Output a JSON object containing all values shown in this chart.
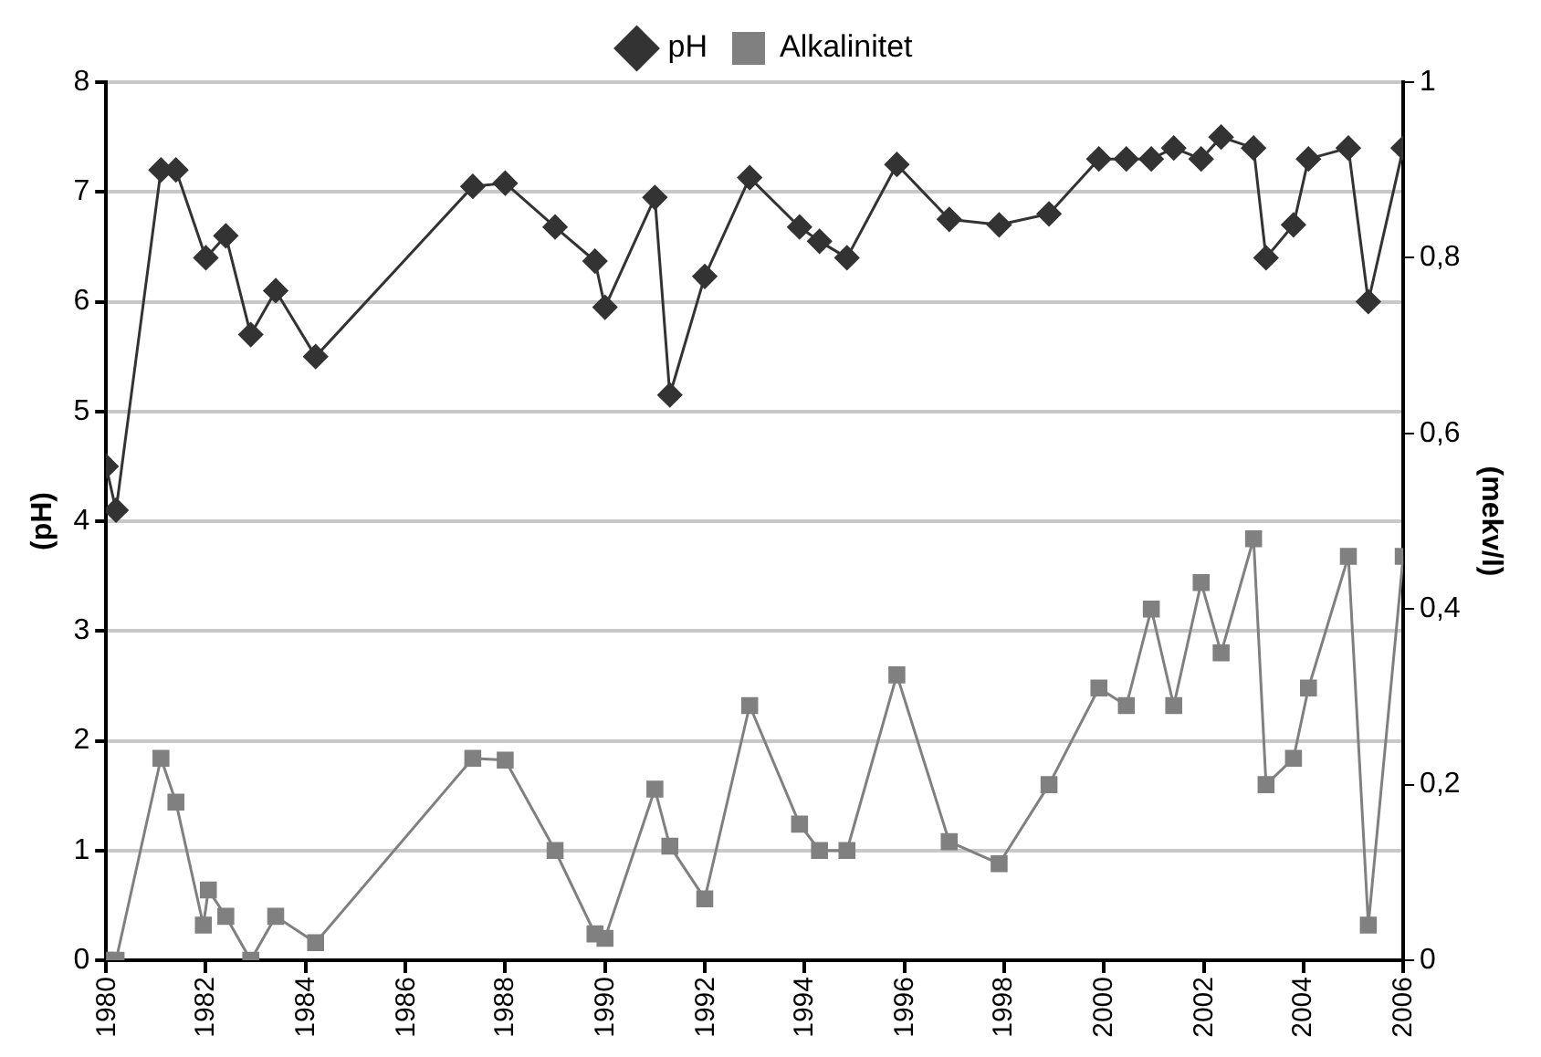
{
  "chart_data": {
    "type": "line",
    "xlabel": null,
    "ylabel": "(pH)",
    "y2label": "(mekv/l)",
    "xlim": [
      1980,
      2006
    ],
    "xticks": [
      1980,
      1982,
      1984,
      1986,
      1988,
      1990,
      1992,
      1994,
      1996,
      1998,
      2000,
      2002,
      2004,
      2006
    ],
    "ylim": [
      0,
      8
    ],
    "yticks": [
      0,
      1,
      2,
      3,
      4,
      5,
      6,
      7,
      8
    ],
    "y2lim": [
      0,
      1
    ],
    "y2ticks": [
      0,
      {
        "value": 0.2,
        "label": "0,2"
      },
      {
        "value": 0.4,
        "label": "0,4"
      },
      {
        "value": 0.6,
        "label": "0,6"
      },
      {
        "value": 0.8,
        "label": "0,8"
      },
      1
    ],
    "grid": "y",
    "legend": "top",
    "line_style": "solid",
    "series": [
      {
        "name": "pH",
        "color": "#333333",
        "marker": "diamond",
        "x": [
          1980.0,
          1980.2,
          1981.1,
          1981.4,
          1982.0,
          1982.4,
          1982.9,
          1983.4,
          1984.2,
          1987.35,
          1988.0,
          1989.0,
          1989.8,
          1990.0,
          1991.0,
          1991.3,
          1992.0,
          1992.9,
          1993.9,
          1994.3,
          1994.85,
          1995.85,
          1996.9,
          1997.9,
          1998.9,
          1999.9,
          2000.45,
          2000.95,
          2001.4,
          2001.95,
          2002.35,
          2003.0,
          2003.25,
          2003.8,
          2004.1,
          2004.9,
          2005.3,
          2006.0
        ],
        "values": [
          4.5,
          4.1,
          7.2,
          7.2,
          6.4,
          6.6,
          5.7,
          6.1,
          5.5,
          7.05,
          7.08,
          6.68,
          6.37,
          5.95,
          6.95,
          5.15,
          6.23,
          7.13,
          6.68,
          6.55,
          6.4,
          7.25,
          6.75,
          6.7,
          6.8,
          7.3,
          7.3,
          7.3,
          7.4,
          7.3,
          7.5,
          7.4,
          6.4,
          6.7,
          7.3,
          7.4,
          6.0,
          7.4
        ]
      },
      {
        "name": "Alkalinitet",
        "color": "#808080",
        "marker": "square",
        "axis": "y2",
        "x": [
          1980.0,
          1980.2,
          1981.1,
          1981.4,
          1981.95,
          1982.05,
          1982.4,
          1982.9,
          1983.4,
          1984.2,
          1987.35,
          1988.0,
          1989.0,
          1989.8,
          1990.0,
          1991.0,
          1991.3,
          1992.0,
          1992.9,
          1993.9,
          1994.3,
          1994.85,
          1995.85,
          1996.9,
          1997.9,
          1998.9,
          1999.9,
          2000.45,
          2000.95,
          2001.4,
          2001.95,
          2002.35,
          2003.0,
          2003.25,
          2003.8,
          2004.1,
          2004.9,
          2005.3,
          2006.0
        ],
        "values": [
          0,
          0,
          0.23,
          0.18,
          0.04,
          0.08,
          0.05,
          0,
          0.05,
          0.02,
          0.23,
          0.228,
          0.125,
          0.03,
          0.025,
          0.195,
          0.13,
          0.07,
          0.29,
          0.155,
          0.125,
          0.125,
          0.325,
          0.135,
          0.11,
          0.2,
          0.31,
          0.29,
          0.4,
          0.29,
          0.43,
          0.35,
          0.48,
          0.2,
          0.23,
          0.31,
          0.46,
          0.04,
          0.46
        ]
      }
    ]
  }
}
